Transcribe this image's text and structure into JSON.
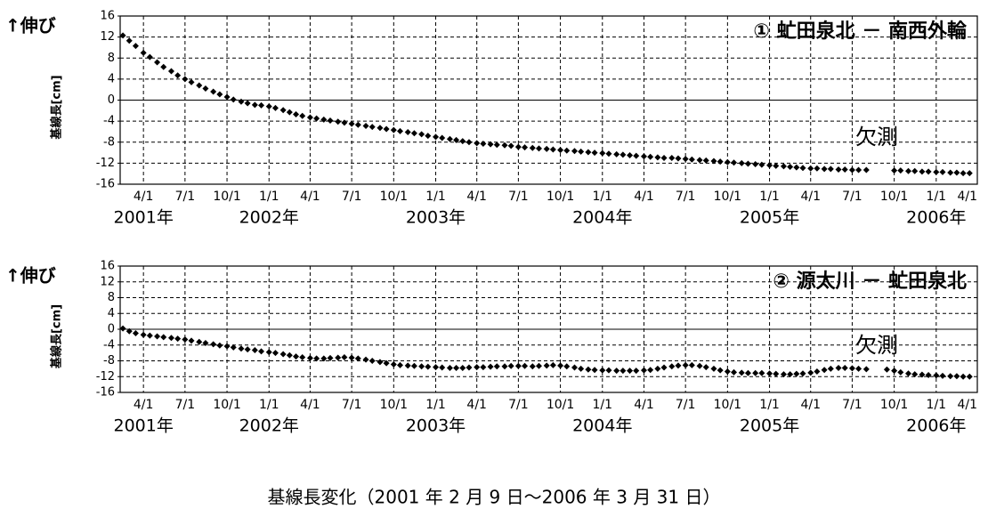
{
  "caption": "基線長変化（2001 年 2 月 9 日～2006 年 3 月 31 日）",
  "chart_data": [
    {
      "type": "scatter",
      "title": "① 虻田泉北 － 南西外輪",
      "ylabel": "基線長[cm]",
      "ylabel_note": "↑伸び",
      "annotations": [
        "欠測"
      ],
      "color": "#000000",
      "grid": true,
      "xlim": [
        "2001-02-09",
        "2006-04-01"
      ],
      "ylim": [
        -16,
        16
      ],
      "yticks": [
        -16,
        -12,
        -8,
        -4,
        0,
        4,
        8,
        12,
        16
      ],
      "xticks": [
        {
          "value": "2001-04-01",
          "label": "4/1"
        },
        {
          "value": "2001-07-01",
          "label": "7/1"
        },
        {
          "value": "2001-10-01",
          "label": "10/1"
        },
        {
          "value": "2002-01-01",
          "label": "1/1"
        },
        {
          "value": "2002-04-01",
          "label": "4/1"
        },
        {
          "value": "2002-07-01",
          "label": "7/1"
        },
        {
          "value": "2002-10-01",
          "label": "10/1"
        },
        {
          "value": "2003-01-01",
          "label": "1/1"
        },
        {
          "value": "2003-04-01",
          "label": "4/1"
        },
        {
          "value": "2003-07-01",
          "label": "7/1"
        },
        {
          "value": "2003-10-01",
          "label": "10/1"
        },
        {
          "value": "2004-01-01",
          "label": "1/1"
        },
        {
          "value": "2004-04-01",
          "label": "4/1"
        },
        {
          "value": "2004-07-01",
          "label": "7/1"
        },
        {
          "value": "2004-10-01",
          "label": "10/1"
        },
        {
          "value": "2005-01-01",
          "label": "1/1"
        },
        {
          "value": "2005-04-01",
          "label": "4/1"
        },
        {
          "value": "2005-07-01",
          "label": "7/1"
        },
        {
          "value": "2005-10-01",
          "label": "10/1"
        },
        {
          "value": "2006-01-01",
          "label": "1/1"
        },
        {
          "value": "2006-04-01",
          "label": "4/1"
        }
      ],
      "year_ticks": [
        {
          "value": "2001-04-01",
          "label": "2001年"
        },
        {
          "value": "2002-01-01",
          "label": "2002年"
        },
        {
          "value": "2003-01-01",
          "label": "2003年"
        },
        {
          "value": "2004-01-01",
          "label": "2004年"
        },
        {
          "value": "2005-01-01",
          "label": "2005年"
        },
        {
          "value": "2006-01-01",
          "label": "2006年"
        }
      ],
      "x": [
        "2001-02-15",
        "2001-03-01",
        "2001-03-15",
        "2001-04-01",
        "2001-04-15",
        "2001-05-01",
        "2001-05-15",
        "2001-06-01",
        "2001-06-15",
        "2001-07-01",
        "2001-07-15",
        "2001-08-01",
        "2001-08-15",
        "2001-09-01",
        "2001-09-15",
        "2001-10-01",
        "2001-10-15",
        "2001-11-01",
        "2001-11-15",
        "2001-12-01",
        "2001-12-15",
        "2002-01-01",
        "2002-01-15",
        "2002-02-01",
        "2002-02-15",
        "2002-03-01",
        "2002-03-15",
        "2002-04-01",
        "2002-04-15",
        "2002-05-01",
        "2002-05-15",
        "2002-06-01",
        "2002-06-15",
        "2002-07-01",
        "2002-07-15",
        "2002-08-01",
        "2002-08-15",
        "2002-09-01",
        "2002-09-15",
        "2002-10-01",
        "2002-10-15",
        "2002-11-01",
        "2002-11-15",
        "2002-12-01",
        "2002-12-15",
        "2003-01-01",
        "2003-01-15",
        "2003-02-01",
        "2003-02-15",
        "2003-03-01",
        "2003-03-15",
        "2003-04-01",
        "2003-04-15",
        "2003-05-01",
        "2003-05-15",
        "2003-06-01",
        "2003-06-15",
        "2003-07-01",
        "2003-07-15",
        "2003-08-01",
        "2003-08-15",
        "2003-09-01",
        "2003-09-15",
        "2003-10-01",
        "2003-10-15",
        "2003-11-01",
        "2003-11-15",
        "2003-12-01",
        "2003-12-15",
        "2004-01-01",
        "2004-01-15",
        "2004-02-01",
        "2004-02-15",
        "2004-03-01",
        "2004-03-15",
        "2004-04-01",
        "2004-04-15",
        "2004-05-01",
        "2004-05-15",
        "2004-06-01",
        "2004-06-15",
        "2004-07-01",
        "2004-07-15",
        "2004-08-01",
        "2004-08-15",
        "2004-09-01",
        "2004-09-15",
        "2004-10-01",
        "2004-10-15",
        "2004-11-01",
        "2004-11-15",
        "2004-12-01",
        "2004-12-15",
        "2005-01-01",
        "2005-01-15",
        "2005-02-01",
        "2005-02-15",
        "2005-03-01",
        "2005-03-15",
        "2005-04-01",
        "2005-04-15",
        "2005-05-01",
        "2005-05-15",
        "2005-06-01",
        "2005-06-15",
        "2005-07-01",
        "2005-07-15",
        "2005-08-01",
        "2005-08-15",
        "2005-09-01",
        "2005-09-15",
        "2005-10-01",
        "2005-10-15",
        "2005-11-01",
        "2005-11-15",
        "2005-12-01",
        "2005-12-15",
        "2006-01-01",
        "2006-01-15",
        "2006-02-01",
        "2006-02-15",
        "2006-03-01",
        "2006-03-15"
      ],
      "values": [
        12.3,
        11.3,
        10.3,
        9.0,
        8.2,
        7.2,
        6.3,
        5.5,
        4.7,
        4.0,
        3.4,
        2.8,
        2.2,
        1.6,
        1.1,
        0.6,
        0.1,
        -0.3,
        -0.6,
        -0.9,
        -1.0,
        -1.2,
        -1.5,
        -1.9,
        -2.3,
        -2.7,
        -3.0,
        -3.3,
        -3.5,
        -3.7,
        -3.9,
        -4.1,
        -4.3,
        -4.5,
        -4.7,
        -4.9,
        -5.1,
        -5.3,
        -5.5,
        -5.7,
        -5.9,
        -6.1,
        -6.3,
        -6.5,
        -6.8,
        -7.0,
        -7.2,
        -7.4,
        -7.6,
        -7.8,
        -8.0,
        -8.2,
        -8.3,
        -8.4,
        -8.5,
        -8.6,
        -8.7,
        -8.9,
        -9.0,
        -9.1,
        -9.2,
        -9.3,
        -9.4,
        -9.5,
        -9.6,
        -9.7,
        -9.8,
        -9.9,
        -10.0,
        -10.1,
        -10.2,
        -10.3,
        -10.4,
        -10.5,
        -10.6,
        -10.7,
        -10.8,
        -10.9,
        -11.0,
        -11.0,
        -11.1,
        -11.2,
        -11.3,
        -11.4,
        -11.5,
        -11.6,
        -11.7,
        -11.8,
        -11.9,
        -12.0,
        -12.1,
        -12.2,
        -12.3,
        -12.4,
        -12.5,
        -12.6,
        -12.7,
        -12.8,
        -12.9,
        -13.0,
        -13.0,
        -13.1,
        -13.1,
        -13.2,
        -13.2,
        -13.3,
        -13.3,
        -13.3,
        null,
        null,
        null,
        -13.4,
        -13.4,
        -13.5,
        -13.5,
        -13.6,
        -13.6,
        -13.7,
        -13.7,
        -13.8,
        -13.8,
        -13.9,
        -13.9
      ]
    },
    {
      "type": "scatter",
      "title": "② 源太川 － 虻田泉北",
      "ylabel": "基線長[cm]",
      "ylabel_note": "↑伸び",
      "annotations": [
        "欠測"
      ],
      "color": "#000000",
      "grid": true,
      "xlim": [
        "2001-02-09",
        "2006-04-01"
      ],
      "ylim": [
        -16,
        16
      ],
      "yticks": [
        -16,
        -12,
        -8,
        -4,
        0,
        4,
        8,
        12,
        16
      ],
      "xticks": [
        {
          "value": "2001-04-01",
          "label": "4/1"
        },
        {
          "value": "2001-07-01",
          "label": "7/1"
        },
        {
          "value": "2001-10-01",
          "label": "10/1"
        },
        {
          "value": "2002-01-01",
          "label": "1/1"
        },
        {
          "value": "2002-04-01",
          "label": "4/1"
        },
        {
          "value": "2002-07-01",
          "label": "7/1"
        },
        {
          "value": "2002-10-01",
          "label": "10/1"
        },
        {
          "value": "2003-01-01",
          "label": "1/1"
        },
        {
          "value": "2003-04-01",
          "label": "4/1"
        },
        {
          "value": "2003-07-01",
          "label": "7/1"
        },
        {
          "value": "2003-10-01",
          "label": "10/1"
        },
        {
          "value": "2004-01-01",
          "label": "1/1"
        },
        {
          "value": "2004-04-01",
          "label": "4/1"
        },
        {
          "value": "2004-07-01",
          "label": "7/1"
        },
        {
          "value": "2004-10-01",
          "label": "10/1"
        },
        {
          "value": "2005-01-01",
          "label": "1/1"
        },
        {
          "value": "2005-04-01",
          "label": "4/1"
        },
        {
          "value": "2005-07-01",
          "label": "7/1"
        },
        {
          "value": "2005-10-01",
          "label": "10/1"
        },
        {
          "value": "2006-01-01",
          "label": "1/1"
        },
        {
          "value": "2006-04-01",
          "label": "4/1"
        }
      ],
      "year_ticks": [
        {
          "value": "2001-04-01",
          "label": "2001年"
        },
        {
          "value": "2002-01-01",
          "label": "2002年"
        },
        {
          "value": "2003-01-01",
          "label": "2003年"
        },
        {
          "value": "2004-01-01",
          "label": "2004年"
        },
        {
          "value": "2005-01-01",
          "label": "2005年"
        },
        {
          "value": "2006-01-01",
          "label": "2006年"
        }
      ],
      "x": [
        "2001-02-15",
        "2001-03-01",
        "2001-03-15",
        "2001-04-01",
        "2001-04-15",
        "2001-05-01",
        "2001-05-15",
        "2001-06-01",
        "2001-06-15",
        "2001-07-01",
        "2001-07-15",
        "2001-08-01",
        "2001-08-15",
        "2001-09-01",
        "2001-09-15",
        "2001-10-01",
        "2001-10-15",
        "2001-11-01",
        "2001-11-15",
        "2001-12-01",
        "2001-12-15",
        "2002-01-01",
        "2002-01-15",
        "2002-02-01",
        "2002-02-15",
        "2002-03-01",
        "2002-03-15",
        "2002-04-01",
        "2002-04-15",
        "2002-05-01",
        "2002-05-15",
        "2002-06-01",
        "2002-06-15",
        "2002-07-01",
        "2002-07-15",
        "2002-08-01",
        "2002-08-15",
        "2002-09-01",
        "2002-09-15",
        "2002-10-01",
        "2002-10-15",
        "2002-11-01",
        "2002-11-15",
        "2002-12-01",
        "2002-12-15",
        "2003-01-01",
        "2003-01-15",
        "2003-02-01",
        "2003-02-15",
        "2003-03-01",
        "2003-03-15",
        "2003-04-01",
        "2003-04-15",
        "2003-05-01",
        "2003-05-15",
        "2003-06-01",
        "2003-06-15",
        "2003-07-01",
        "2003-07-15",
        "2003-08-01",
        "2003-08-15",
        "2003-09-01",
        "2003-09-15",
        "2003-10-01",
        "2003-10-15",
        "2003-11-01",
        "2003-11-15",
        "2003-12-01",
        "2003-12-15",
        "2004-01-01",
        "2004-01-15",
        "2004-02-01",
        "2004-02-15",
        "2004-03-01",
        "2004-03-15",
        "2004-04-01",
        "2004-04-15",
        "2004-05-01",
        "2004-05-15",
        "2004-06-01",
        "2004-06-15",
        "2004-07-01",
        "2004-07-15",
        "2004-08-01",
        "2004-08-15",
        "2004-09-01",
        "2004-09-15",
        "2004-10-01",
        "2004-10-15",
        "2004-11-01",
        "2004-11-15",
        "2004-12-01",
        "2004-12-15",
        "2005-01-01",
        "2005-01-15",
        "2005-02-01",
        "2005-02-15",
        "2005-03-01",
        "2005-03-15",
        "2005-04-01",
        "2005-04-15",
        "2005-05-01",
        "2005-05-15",
        "2005-06-01",
        "2005-06-15",
        "2005-07-01",
        "2005-07-15",
        "2005-08-01",
        "2005-08-15",
        "2005-09-01",
        "2005-09-15",
        "2005-10-01",
        "2005-10-15",
        "2005-11-01",
        "2005-11-15",
        "2005-12-01",
        "2005-12-15",
        "2006-01-01",
        "2006-01-15",
        "2006-02-01",
        "2006-02-15",
        "2006-03-01",
        "2006-03-15"
      ],
      "values": [
        0.2,
        -0.5,
        -1.0,
        -1.4,
        -1.6,
        -1.8,
        -2.0,
        -2.2,
        -2.4,
        -2.6,
        -2.9,
        -3.2,
        -3.5,
        -3.8,
        -4.1,
        -4.3,
        -4.6,
        -4.9,
        -5.1,
        -5.3,
        -5.6,
        -5.8,
        -6.0,
        -6.3,
        -6.6,
        -6.9,
        -7.1,
        -7.3,
        -7.4,
        -7.4,
        -7.3,
        -7.2,
        -7.1,
        -7.2,
        -7.4,
        -7.7,
        -8.0,
        -8.3,
        -8.6,
        -8.9,
        -9.1,
        -9.2,
        -9.3,
        -9.4,
        -9.5,
        -9.6,
        -9.7,
        -9.8,
        -9.8,
        -9.8,
        -9.7,
        -9.6,
        -9.6,
        -9.5,
        -9.4,
        -9.4,
        -9.3,
        -9.3,
        -9.3,
        -9.4,
        -9.3,
        -9.2,
        -9.1,
        -9.2,
        -9.4,
        -9.7,
        -10.0,
        -10.2,
        -10.3,
        -10.4,
        -10.4,
        -10.5,
        -10.5,
        -10.5,
        -10.5,
        -10.4,
        -10.3,
        -10.0,
        -9.7,
        -9.4,
        -9.2,
        -9.1,
        -9.1,
        -9.3,
        -9.6,
        -10.0,
        -10.4,
        -10.7,
        -10.9,
        -11.0,
        -11.1,
        -11.1,
        -11.1,
        -11.2,
        -11.3,
        -11.4,
        -11.4,
        -11.3,
        -11.2,
        -11.0,
        -10.7,
        -10.3,
        -10.0,
        -9.8,
        -9.8,
        -9.9,
        -10.0,
        -10.1,
        null,
        null,
        -10.2,
        -10.5,
        -10.9,
        -11.2,
        -11.4,
        -11.5,
        -11.6,
        -11.7,
        -11.8,
        -11.9,
        -11.9,
        -12.0,
        -12.0
      ]
    }
  ]
}
